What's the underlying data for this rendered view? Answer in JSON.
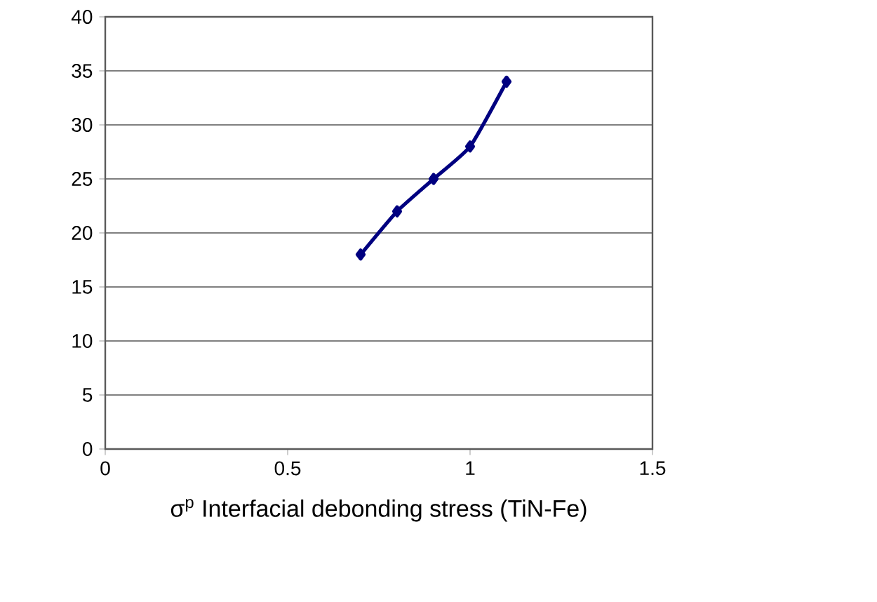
{
  "chart_data": {
    "type": "line",
    "xlabel": "σ$^{p}$ Interfacial debonding stress (TiN-Fe)",
    "x": [
      0.7,
      0.8,
      0.9,
      1.0,
      1.1
    ],
    "series": [
      {
        "color": "#000080",
        "values": [
          18,
          22,
          25,
          28,
          34
        ]
      }
    ],
    "xlim": [
      0,
      1.5
    ],
    "xticks": [
      0,
      0.5,
      1,
      1.5
    ],
    "ylim": [
      0,
      40
    ],
    "yticks": [
      0,
      5,
      10,
      15,
      20,
      25,
      30,
      35,
      40
    ],
    "grid": "y",
    "marker": "diamond",
    "line_style": "solid"
  }
}
